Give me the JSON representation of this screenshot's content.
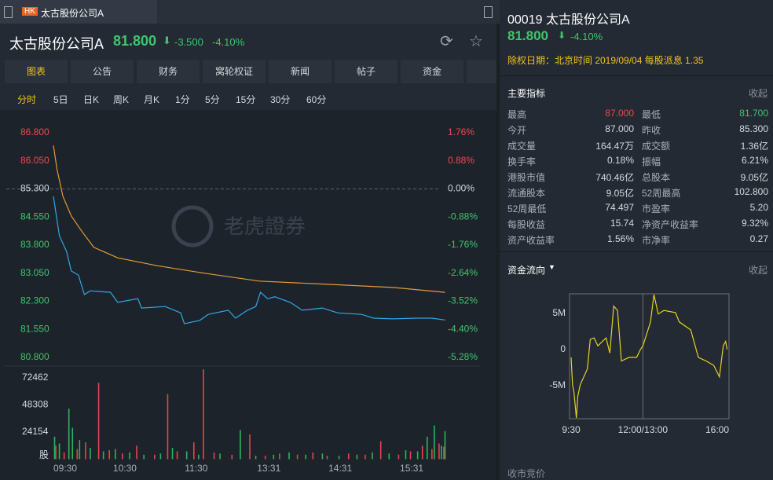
{
  "tab": {
    "badge": "HK",
    "title": "太古股份公司A"
  },
  "quote": {
    "name": "太古股份公司A",
    "price": "81.800",
    "change": "-3.500",
    "change_pct": "-4.10%"
  },
  "nav_tabs": [
    "图表",
    "公告",
    "财务",
    "窝轮权证",
    "新闻",
    "帖子",
    "资金"
  ],
  "period_tabs": [
    "分时",
    "5日",
    "日K",
    "周K",
    "月K",
    "1分",
    "5分",
    "15分",
    "30分",
    "60分"
  ],
  "watermark": "老虎證券",
  "side": {
    "code_name": "00019 太古股份公司A",
    "price": "81.800",
    "change_pct": "-4.10%",
    "dividend": "除权日期：北京时间 2019/09/04 每股派息 1.35",
    "indicators_title": "主要指标",
    "collapse": "收起",
    "stats": [
      [
        "最高",
        "87.000",
        "最低",
        "81.700"
      ],
      [
        "今开",
        "87.000",
        "昨收",
        "85.300"
      ],
      [
        "成交量",
        "164.47万",
        "成交额",
        "1.36亿"
      ],
      [
        "换手率",
        "0.18%",
        "振幅",
        "6.21%"
      ],
      [
        "港股市值",
        "740.46亿",
        "总股本",
        "9.05亿"
      ],
      [
        "流通股本",
        "9.05亿",
        "52周最高",
        "102.800"
      ],
      [
        "52周最低",
        "74.497",
        "市盈率",
        "5.20"
      ],
      [
        "每股收益",
        "15.74",
        "净资产收益率",
        "9.32%"
      ],
      [
        "资产收益率",
        "1.56%",
        "市净率",
        "0.27"
      ]
    ],
    "flow_title": "资金流向",
    "flow_collapse": "收起",
    "auction": "收市竞价"
  },
  "chart_data": [
    {
      "type": "line",
      "series": [
        {
          "color": "#2ea8e6",
          "x": [
            0,
            5,
            11,
            15,
            21,
            26,
            31,
            48,
            54,
            71,
            74,
            94,
            107,
            110,
            123,
            130,
            147,
            153,
            163,
            170,
            174,
            180,
            186,
            199,
            209,
            226,
            239,
            259,
            269,
            285,
            305,
            318,
            329
          ],
          "values": [
            85.1,
            84.05,
            83.63,
            83.11,
            83.0,
            82.48,
            82.58,
            82.54,
            82.27,
            82.37,
            82.12,
            82.16,
            81.99,
            81.7,
            81.79,
            81.95,
            82.06,
            81.85,
            82.06,
            82.16,
            82.54,
            82.37,
            82.42,
            82.27,
            82.06,
            82.12,
            81.99,
            81.95,
            81.85,
            81.83,
            81.85,
            81.85,
            81.8
          ]
        },
        {
          "color": "#e39b38",
          "x": [
            0,
            3,
            8,
            15,
            24,
            34,
            54,
            87,
            127,
            173,
            232,
            285,
            329
          ],
          "values": [
            86.46,
            85.83,
            85.1,
            84.58,
            84.16,
            83.74,
            83.46,
            83.25,
            83.05,
            82.84,
            82.75,
            82.67,
            82.54
          ]
        }
      ],
      "xlim": [
        0,
        330
      ],
      "xticks": [
        {
          "value": 0,
          "label": "09:30"
        },
        {
          "value": 60,
          "label": "10:30"
        },
        {
          "value": 120,
          "label": "11:30"
        },
        {
          "value": 181,
          "label": "13:31"
        },
        {
          "value": 241,
          "label": "14:31"
        },
        {
          "value": 301,
          "label": "15:31"
        }
      ],
      "ylim": [
        80.8,
        86.8
      ],
      "yticks": [
        {
          "value": 86.8,
          "label": "86.800"
        },
        {
          "value": 86.05,
          "label": "86.050"
        },
        {
          "value": 85.3,
          "label": "85.300"
        },
        {
          "value": 84.55,
          "label": "84.550"
        },
        {
          "value": 83.8,
          "label": "83.800"
        },
        {
          "value": 83.05,
          "label": "83.050"
        },
        {
          "value": 82.3,
          "label": "82.300"
        },
        {
          "value": 81.55,
          "label": "81.550"
        },
        {
          "value": 80.8,
          "label": "80.800"
        }
      ],
      "y2lim": [
        -5.28,
        1.76
      ],
      "y2ticks": [
        {
          "value": 1.76,
          "label": "1.76%"
        },
        {
          "value": 0.88,
          "label": "0.88%"
        },
        {
          "value": 0,
          "label": "0.00%"
        },
        {
          "value": -0.88,
          "label": "-0.88%"
        },
        {
          "value": -1.76,
          "label": "-1.76%"
        },
        {
          "value": -2.64,
          "label": "-2.64%"
        },
        {
          "value": -3.52,
          "label": "-3.52%"
        },
        {
          "value": -4.4,
          "label": "-4.40%"
        },
        {
          "value": -5.28,
          "label": "-5.28%"
        }
      ],
      "baseline": 85.3
    },
    {
      "type": "bar",
      "unit_label": "股",
      "series": [
        {
          "color": "#e0474c",
          "x": [
            2,
            9,
            20,
            27,
            38,
            47,
            58,
            70,
            85,
            96,
            104,
            118,
            126,
            135,
            150,
            165,
            178,
            190,
            205,
            218,
            230,
            248,
            262,
            275,
            290,
            300,
            310,
            318,
            324,
            328
          ],
          "values": [
            12000,
            6000,
            9000,
            15000,
            68000,
            8000,
            5000,
            12000,
            4000,
            58000,
            7000,
            15000,
            80000,
            6000,
            4000,
            22000,
            3000,
            5000,
            4000,
            6000,
            3000,
            5000,
            4000,
            16000,
            4000,
            7000,
            12000,
            9000,
            14000,
            11000
          ]
        },
        {
          "color": "#2fb35a",
          "x": [
            1,
            5,
            13,
            16,
            22,
            31,
            42,
            52,
            64,
            76,
            90,
            100,
            112,
            122,
            140,
            157,
            170,
            185,
            198,
            212,
            226,
            240,
            255,
            268,
            282,
            296,
            306,
            314,
            320,
            326,
            329
          ],
          "values": [
            20000,
            14000,
            45000,
            28000,
            17000,
            10000,
            7000,
            9000,
            6000,
            4000,
            5000,
            10000,
            7000,
            4000,
            5000,
            26000,
            3000,
            4000,
            6000,
            4000,
            5000,
            3000,
            4000,
            6000,
            5000,
            8000,
            7000,
            20000,
            30000,
            12000,
            25000
          ]
        }
      ],
      "xlim": [
        0,
        330
      ],
      "ylim": [
        0,
        81500
      ],
      "yticks": [
        24154,
        48308,
        72462
      ]
    },
    {
      "type": "line",
      "color": "#e8d21d",
      "x": [
        0,
        3,
        6,
        11,
        14,
        19,
        34,
        40,
        48,
        56,
        73,
        81,
        89,
        97,
        105,
        121,
        137,
        145,
        150,
        166,
        173,
        182,
        194,
        218,
        226,
        250,
        266,
        282,
        298,
        310,
        318,
        323,
        326
      ],
      "values": [
        -1100000,
        -4900000,
        -6000000,
        -9500000,
        -6500000,
        -4900000,
        -2700000,
        1400000,
        1600000,
        500000,
        1600000,
        -500000,
        6000000,
        5400000,
        -1600000,
        -1100000,
        -1100000,
        0,
        500000,
        3800000,
        7600000,
        4900000,
        5400000,
        5100000,
        3800000,
        2700000,
        -1100000,
        -1600000,
        -2200000,
        -3800000,
        500000,
        1100000,
        0
      ],
      "xlim": [
        0,
        330
      ],
      "xticks": [
        {
          "value": 0,
          "label": "9:30"
        },
        {
          "value": 150,
          "label": "12:00/13:00"
        },
        {
          "value": 330,
          "label": "16:00"
        }
      ],
      "ylim": [
        -9600000,
        7700000
      ],
      "yticks": [
        {
          "value": 5000000,
          "label": "5M"
        },
        0,
        {
          "value": -5000000,
          "label": "-5M"
        }
      ]
    }
  ]
}
